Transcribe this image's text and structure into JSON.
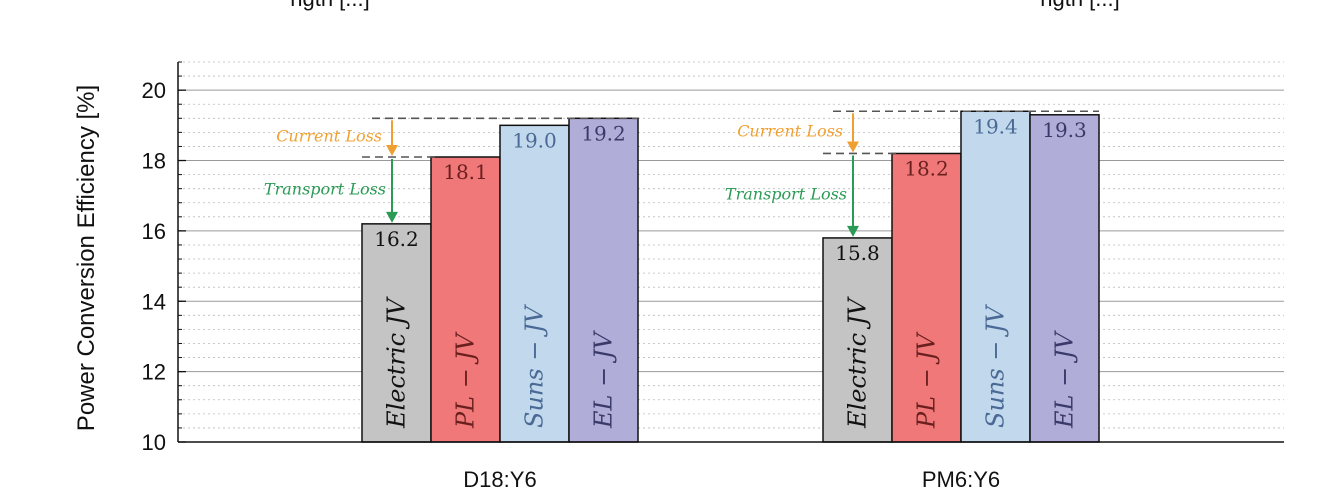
{
  "top_fragments": [
    "ngth [...]",
    "ngth [...]"
  ],
  "chart_data": {
    "type": "bar",
    "ylabel": "Power Conversion Efficiency [%]",
    "ylim": [
      10,
      20.8
    ],
    "yticks": [
      10,
      12,
      14,
      16,
      18,
      20
    ],
    "grid": "major solid, minor dotted",
    "categories": [
      "D18:Y6",
      "PM6:Y6"
    ],
    "series": [
      {
        "name": "Electric JV",
        "label": "Electric JV",
        "color": "#c4c4c4",
        "text_color": "#111111",
        "values": [
          16.2,
          15.8
        ]
      },
      {
        "name": "PL-JV",
        "label": "PL − JV",
        "color": "#f07878",
        "text_color": "#6a1f1f",
        "values": [
          18.1,
          18.2
        ]
      },
      {
        "name": "Suns-JV",
        "label": "Suns − JV",
        "color": "#c2d8ec",
        "text_color": "#4a6a95",
        "values": [
          19.0,
          19.4
        ]
      },
      {
        "name": "EL-JV",
        "label": "EL − JV",
        "color": "#b0aed8",
        "text_color": "#3a3a6a",
        "values": [
          19.2,
          19.3
        ]
      }
    ],
    "annotations": [
      {
        "text": "Current Loss",
        "color": "#f0a030"
      },
      {
        "text": "Transport Loss",
        "color": "#2a9a55"
      }
    ]
  }
}
